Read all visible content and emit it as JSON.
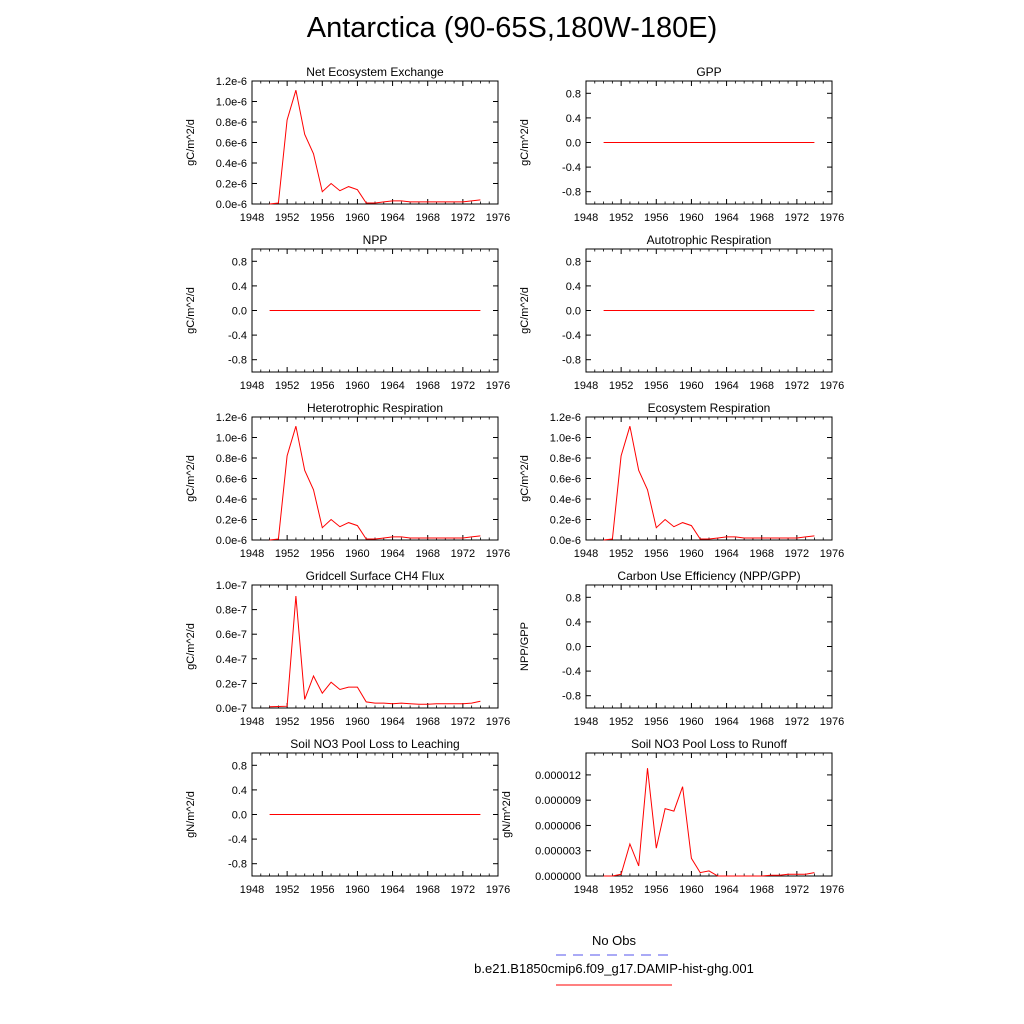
{
  "title": "Antarctica (90-65S,180W-180E)",
  "legend": {
    "obs_label": "No Obs",
    "obs_color": "#5555ee",
    "model_label": "b.e21.B1850cmip6.f09_g17.DAMIP-hist-ghg.001",
    "model_color": "#ff0000"
  },
  "chart_data": [
    {
      "type": "line",
      "title": "Net Ecosystem Exchange",
      "ylabel": "gC/m^2/d",
      "xlim": [
        1948,
        1976
      ],
      "xticks": [
        "1948",
        "1952",
        "1956",
        "1960",
        "1964",
        "1968",
        "1972",
        "1976"
      ],
      "ylim": [
        0,
        1.2
      ],
      "yticks": [
        "0.0e-6",
        "0.2e-6",
        "0.4e-6",
        "0.6e-6",
        "0.8e-6",
        "1.0e-6",
        "1.2e-6"
      ],
      "series": [
        {
          "x": [
            1950,
            1951,
            1952,
            1953,
            1954,
            1955,
            1956,
            1957,
            1958,
            1959,
            1960,
            1961,
            1962,
            1963,
            1964,
            1965,
            1966,
            1967,
            1968,
            1969,
            1970,
            1971,
            1972,
            1973,
            1974
          ],
          "y": [
            0.0,
            0.01,
            0.82,
            1.11,
            0.68,
            0.49,
            0.12,
            0.2,
            0.13,
            0.17,
            0.14,
            0.01,
            0.01,
            0.02,
            0.03,
            0.03,
            0.02,
            0.02,
            0.02,
            0.02,
            0.02,
            0.02,
            0.02,
            0.03,
            0.04
          ]
        }
      ]
    },
    {
      "type": "line",
      "title": "GPP",
      "ylabel": "gC/m^2/d",
      "xlim": [
        1948,
        1976
      ],
      "xticks": [
        "1948",
        "1952",
        "1956",
        "1960",
        "1964",
        "1968",
        "1972",
        "1976"
      ],
      "ylim": [
        -1,
        1
      ],
      "yticks": [
        "-0.8",
        "-0.4",
        "0.0",
        "0.4",
        "0.8"
      ],
      "series": [
        {
          "x": [
            1950,
            1974
          ],
          "y": [
            0,
            0
          ]
        }
      ]
    },
    {
      "type": "line",
      "title": "NPP",
      "ylabel": "gC/m^2/d",
      "xlim": [
        1948,
        1976
      ],
      "xticks": [
        "1948",
        "1952",
        "1956",
        "1960",
        "1964",
        "1968",
        "1972",
        "1976"
      ],
      "ylim": [
        -1,
        1
      ],
      "yticks": [
        "-0.8",
        "-0.4",
        "0.0",
        "0.4",
        "0.8"
      ],
      "series": [
        {
          "x": [
            1950,
            1974
          ],
          "y": [
            0,
            0
          ]
        }
      ]
    },
    {
      "type": "line",
      "title": "Autotrophic Respiration",
      "ylabel": "gC/m^2/d",
      "xlim": [
        1948,
        1976
      ],
      "xticks": [
        "1948",
        "1952",
        "1956",
        "1960",
        "1964",
        "1968",
        "1972",
        "1976"
      ],
      "ylim": [
        -1,
        1
      ],
      "yticks": [
        "-0.8",
        "-0.4",
        "0.0",
        "0.4",
        "0.8"
      ],
      "series": [
        {
          "x": [
            1950,
            1974
          ],
          "y": [
            0,
            0
          ]
        }
      ]
    },
    {
      "type": "line",
      "title": "Heterotrophic Respiration",
      "ylabel": "gC/m^2/d",
      "xlim": [
        1948,
        1976
      ],
      "xticks": [
        "1948",
        "1952",
        "1956",
        "1960",
        "1964",
        "1968",
        "1972",
        "1976"
      ],
      "ylim": [
        0,
        1.2
      ],
      "yticks": [
        "0.0e-6",
        "0.2e-6",
        "0.4e-6",
        "0.6e-6",
        "0.8e-6",
        "1.0e-6",
        "1.2e-6"
      ],
      "series": [
        {
          "x": [
            1950,
            1951,
            1952,
            1953,
            1954,
            1955,
            1956,
            1957,
            1958,
            1959,
            1960,
            1961,
            1962,
            1963,
            1964,
            1965,
            1966,
            1967,
            1968,
            1969,
            1970,
            1971,
            1972,
            1973,
            1974
          ],
          "y": [
            0.0,
            0.01,
            0.82,
            1.11,
            0.68,
            0.49,
            0.12,
            0.2,
            0.13,
            0.17,
            0.14,
            0.01,
            0.01,
            0.02,
            0.03,
            0.03,
            0.02,
            0.02,
            0.02,
            0.02,
            0.02,
            0.02,
            0.02,
            0.03,
            0.04
          ]
        }
      ]
    },
    {
      "type": "line",
      "title": "Ecosystem Respiration",
      "ylabel": "gC/m^2/d",
      "xlim": [
        1948,
        1976
      ],
      "xticks": [
        "1948",
        "1952",
        "1956",
        "1960",
        "1964",
        "1968",
        "1972",
        "1976"
      ],
      "ylim": [
        0,
        1.2
      ],
      "yticks": [
        "0.0e-6",
        "0.2e-6",
        "0.4e-6",
        "0.6e-6",
        "0.8e-6",
        "1.0e-6",
        "1.2e-6"
      ],
      "series": [
        {
          "x": [
            1950,
            1951,
            1952,
            1953,
            1954,
            1955,
            1956,
            1957,
            1958,
            1959,
            1960,
            1961,
            1962,
            1963,
            1964,
            1965,
            1966,
            1967,
            1968,
            1969,
            1970,
            1971,
            1972,
            1973,
            1974
          ],
          "y": [
            0.0,
            0.01,
            0.82,
            1.11,
            0.68,
            0.49,
            0.12,
            0.2,
            0.13,
            0.17,
            0.14,
            0.01,
            0.01,
            0.02,
            0.03,
            0.03,
            0.02,
            0.02,
            0.02,
            0.02,
            0.02,
            0.02,
            0.02,
            0.03,
            0.04
          ]
        }
      ]
    },
    {
      "type": "line",
      "title": "Gridcell Surface CH4 Flux",
      "ylabel": "gC/m^2/d",
      "xlim": [
        1948,
        1976
      ],
      "xticks": [
        "1948",
        "1952",
        "1956",
        "1960",
        "1964",
        "1968",
        "1972",
        "1976"
      ],
      "ylim": [
        0,
        1.0
      ],
      "yticks": [
        "0.0e-7",
        "0.2e-7",
        "0.4e-7",
        "0.6e-7",
        "0.8e-7",
        "1.0e-7"
      ],
      "series": [
        {
          "x": [
            1950,
            1951,
            1952,
            1953,
            1954,
            1955,
            1956,
            1957,
            1958,
            1959,
            1960,
            1961,
            1962,
            1963,
            1964,
            1965,
            1966,
            1967,
            1968,
            1969,
            1970,
            1971,
            1972,
            1973,
            1974
          ],
          "y": [
            0.01,
            0.012,
            0.015,
            0.91,
            0.07,
            0.26,
            0.12,
            0.21,
            0.15,
            0.17,
            0.17,
            0.05,
            0.04,
            0.04,
            0.035,
            0.04,
            0.035,
            0.03,
            0.03,
            0.035,
            0.035,
            0.035,
            0.035,
            0.04,
            0.055
          ]
        }
      ]
    },
    {
      "type": "line",
      "title": "Carbon Use Efficiency (NPP/GPP)",
      "ylabel": "NPP/GPP",
      "xlim": [
        1948,
        1976
      ],
      "xticks": [
        "1948",
        "1952",
        "1956",
        "1960",
        "1964",
        "1968",
        "1972",
        "1976"
      ],
      "ylim": [
        -1,
        1
      ],
      "yticks": [
        "-0.8",
        "-0.4",
        "0.0",
        "0.4",
        "0.8"
      ],
      "series": []
    },
    {
      "type": "line",
      "title": "Soil NO3 Pool Loss to Leaching",
      "ylabel": "gN/m^2/d",
      "xlim": [
        1948,
        1976
      ],
      "xticks": [
        "1948",
        "1952",
        "1956",
        "1960",
        "1964",
        "1968",
        "1972",
        "1976"
      ],
      "ylim": [
        -1,
        1
      ],
      "yticks": [
        "-0.8",
        "-0.4",
        "0.0",
        "0.4",
        "0.8"
      ],
      "series": [
        {
          "x": [
            1950,
            1974
          ],
          "y": [
            0,
            0
          ]
        }
      ]
    },
    {
      "type": "line",
      "title": "Soil NO3 Pool Loss to Runoff",
      "ylabel": "gN/m^2/d",
      "xlim": [
        1948,
        1976
      ],
      "xticks": [
        "1948",
        "1952",
        "1956",
        "1960",
        "1964",
        "1968",
        "1972",
        "1976"
      ],
      "ylim": [
        0,
        1.46e-05
      ],
      "yticks": [
        "0.000000",
        "0.000003",
        "0.000006",
        "0.000009",
        "0.000012"
      ],
      "series": [
        {
          "x": [
            1950,
            1951,
            1952,
            1953,
            1954,
            1955,
            1956,
            1957,
            1958,
            1959,
            1960,
            1961,
            1962,
            1963,
            1964,
            1965,
            1966,
            1967,
            1968,
            1969,
            1970,
            1971,
            1972,
            1973,
            1974
          ],
          "y": [
            0,
            0,
            2e-07,
            3.8e-06,
            1.2e-06,
            1.28e-05,
            3.3e-06,
            8e-06,
            7.7e-06,
            1.06e-05,
            2.1e-06,
            4e-07,
            6e-07,
            0,
            0,
            0,
            0,
            0,
            0,
            1e-07,
            1e-07,
            2e-07,
            2e-07,
            2e-07,
            4e-07
          ]
        }
      ]
    }
  ]
}
